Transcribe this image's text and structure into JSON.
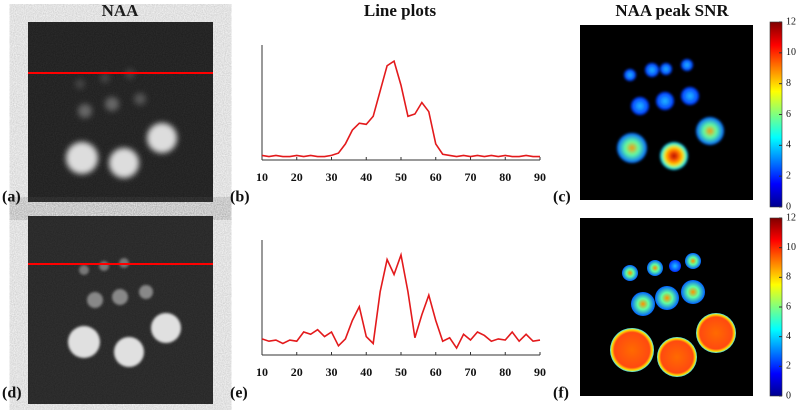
{
  "headers": {
    "col1": "NAA",
    "col2": "Line plots",
    "col3": "NAA peak SNR"
  },
  "panels": {
    "labels": [
      "(a)",
      "(b)",
      "(c)",
      "(d)",
      "(e)",
      "(f)"
    ]
  },
  "chart_data": [
    {
      "type": "line",
      "x": [
        10,
        12,
        14,
        16,
        18,
        20,
        22,
        24,
        26,
        28,
        30,
        32,
        34,
        36,
        38,
        40,
        42,
        44,
        46,
        48,
        50,
        52,
        54,
        56,
        58,
        60,
        62,
        64,
        66,
        68,
        70,
        72,
        74,
        76,
        78,
        80,
        82,
        84,
        86,
        88,
        90
      ],
      "series": [
        {
          "color": "#e31a1c",
          "values": [
            0.04,
            0.03,
            0.04,
            0.03,
            0.03,
            0.04,
            0.03,
            0.04,
            0.03,
            0.03,
            0.04,
            0.06,
            0.14,
            0.26,
            0.32,
            0.31,
            0.38,
            0.6,
            0.82,
            0.86,
            0.65,
            0.38,
            0.4,
            0.5,
            0.42,
            0.14,
            0.05,
            0.04,
            0.03,
            0.04,
            0.03,
            0.04,
            0.03,
            0.04,
            0.03,
            0.04,
            0.03,
            0.03,
            0.04,
            0.03,
            0.03
          ]
        }
      ],
      "xlim": [
        10,
        90
      ],
      "xticks": [
        10,
        20,
        30,
        40,
        50,
        60,
        70,
        80,
        90
      ],
      "ylim": [
        0,
        1
      ]
    },
    {
      "type": "line",
      "x": [
        10,
        12,
        14,
        16,
        18,
        20,
        22,
        24,
        26,
        28,
        30,
        32,
        34,
        36,
        38,
        40,
        42,
        44,
        46,
        48,
        50,
        52,
        54,
        56,
        58,
        60,
        62,
        64,
        66,
        68,
        70,
        72,
        74,
        76,
        78,
        80,
        82,
        84,
        86,
        88,
        90
      ],
      "series": [
        {
          "color": "#e31a1c",
          "values": [
            0.14,
            0.12,
            0.13,
            0.1,
            0.13,
            0.12,
            0.2,
            0.18,
            0.22,
            0.16,
            0.2,
            0.08,
            0.14,
            0.3,
            0.42,
            0.16,
            0.1,
            0.55,
            0.83,
            0.7,
            0.87,
            0.55,
            0.15,
            0.35,
            0.52,
            0.3,
            0.12,
            0.15,
            0.06,
            0.18,
            0.13,
            0.2,
            0.17,
            0.12,
            0.14,
            0.13,
            0.2,
            0.12,
            0.18,
            0.12,
            0.13
          ]
        }
      ],
      "xlim": [
        10,
        90
      ],
      "xticks": [
        10,
        20,
        30,
        40,
        50,
        60,
        70,
        80,
        90
      ],
      "ylim": [
        0,
        1
      ]
    },
    {
      "type": "colorbar",
      "ylim": [
        0,
        12
      ],
      "yticks": [
        0,
        2,
        4,
        6,
        8,
        10,
        12
      ]
    },
    {
      "type": "colorbar",
      "ylim": [
        0,
        12
      ],
      "yticks": [
        0,
        2,
        4,
        6,
        8,
        10,
        12
      ]
    }
  ]
}
